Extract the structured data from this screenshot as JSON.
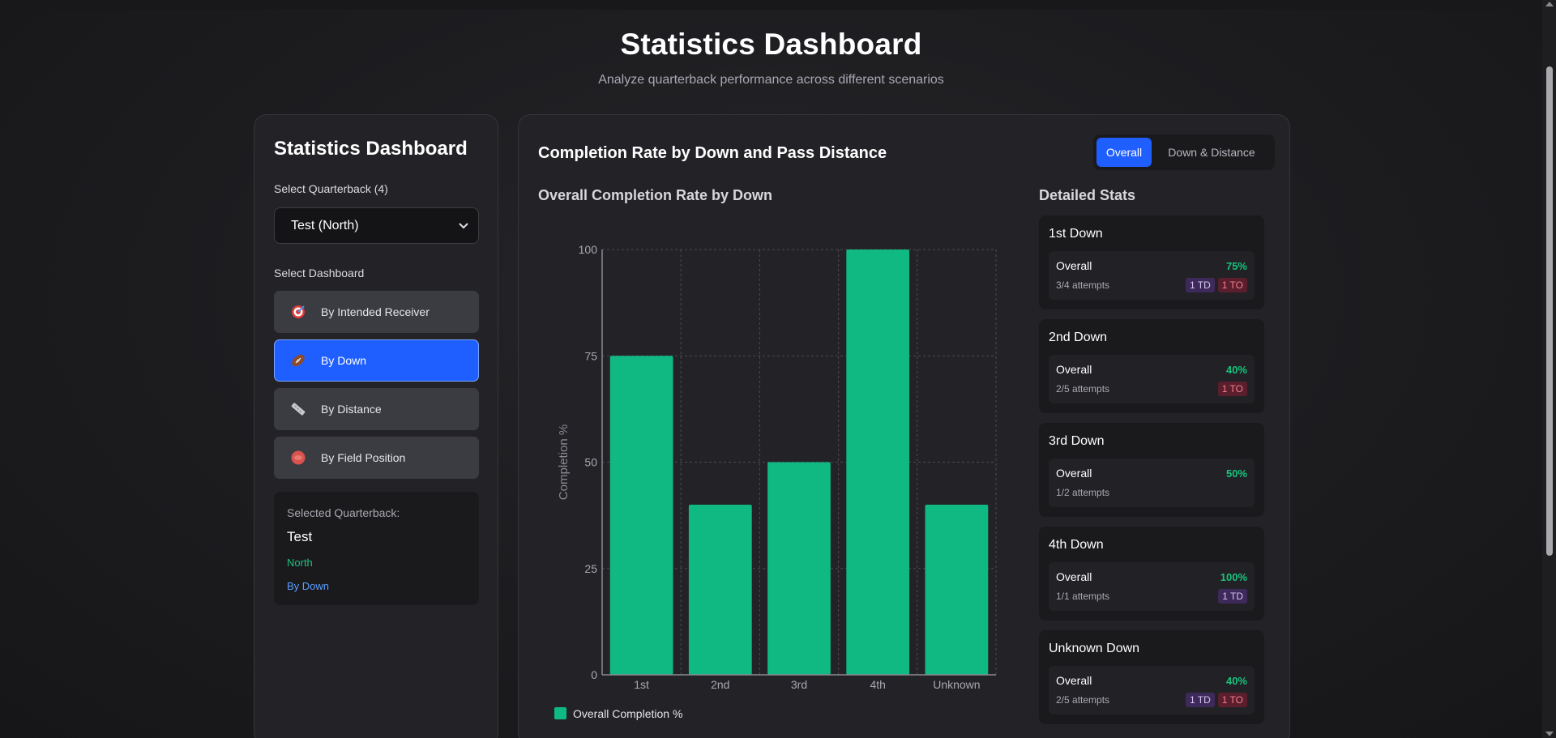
{
  "page": {
    "title": "Statistics Dashboard",
    "subtitle": "Analyze quarterback performance across different scenarios"
  },
  "sidebar": {
    "title": "Statistics Dashboard",
    "qb_label": "Select Quarterback (4)",
    "qb_selected": "Test (North)",
    "dashboard_label": "Select Dashboard",
    "dashboards": [
      {
        "label": "By Intended Receiver",
        "icon": "target-icon"
      },
      {
        "label": "By Down",
        "icon": "football-icon"
      },
      {
        "label": "By Distance",
        "icon": "ruler-icon"
      },
      {
        "label": "By Field Position",
        "icon": "stadium-icon"
      }
    ],
    "active_dashboard": "By Down",
    "selected": {
      "label": "Selected Quarterback:",
      "name": "Test",
      "team": "North",
      "mode": "By Down"
    }
  },
  "main": {
    "title": "Completion Rate by Down and Pass Distance",
    "toggle": {
      "overall": "Overall",
      "down_distance": "Down & Distance"
    },
    "chart_title": "Overall Completion Rate by Down",
    "stats_title": "Detailed Stats"
  },
  "chart_data": {
    "type": "bar",
    "title": "Overall Completion Rate by Down",
    "categories": [
      "1st",
      "2nd",
      "3rd",
      "4th",
      "Unknown"
    ],
    "values": [
      75,
      40,
      50,
      100,
      40
    ],
    "ylabel": "Completion %",
    "xlabel": "",
    "ylim": [
      0,
      100
    ],
    "yticks": [
      0,
      25,
      50,
      75,
      100
    ],
    "grid": true,
    "legend": "Overall Completion %",
    "bar_color": "#10b981"
  },
  "stats": [
    {
      "down": "1st Down",
      "label": "Overall",
      "pct": "75%",
      "attempts": "3/4 attempts",
      "badges": [
        "1 TD",
        "1 TO"
      ]
    },
    {
      "down": "2nd Down",
      "label": "Overall",
      "pct": "40%",
      "attempts": "2/5 attempts",
      "badges": [
        "1 TO"
      ]
    },
    {
      "down": "3rd Down",
      "label": "Overall",
      "pct": "50%",
      "attempts": "1/2 attempts",
      "badges": []
    },
    {
      "down": "4th Down",
      "label": "Overall",
      "pct": "100%",
      "attempts": "1/1 attempts",
      "badges": [
        "1 TD"
      ]
    },
    {
      "down": "Unknown Down",
      "label": "Overall",
      "pct": "40%",
      "attempts": "2/5 attempts",
      "badges": [
        "1 TD",
        "1 TO"
      ]
    }
  ],
  "colors": {
    "accent": "#1f5eff",
    "success": "#19c37d",
    "td_badge": "#3e2a5a",
    "to_badge": "#5a1e2c"
  }
}
